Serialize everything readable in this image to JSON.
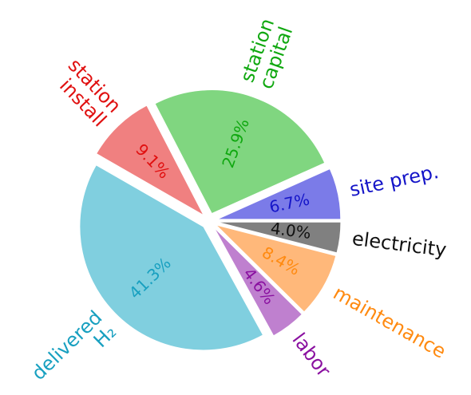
{
  "chart_data": {
    "type": "pie",
    "categories": [
      "site prep.",
      "station\ncapital",
      "station\ninstall",
      "delivered\nH₂",
      "labor",
      "maintenance",
      "electricity"
    ],
    "values": [
      6.7,
      25.9,
      9.1,
      41.3,
      4.6,
      8.4,
      4.0
    ],
    "value_labels": [
      "6.7%",
      "25.9%",
      "9.1%",
      "41.3%",
      "4.6%",
      "8.4%",
      "4.0%"
    ],
    "colors": [
      "#7b7be8",
      "#80d680",
      "#f08080",
      "#80cfdf",
      "#bf80cf",
      "#ffb87a",
      "#808080"
    ],
    "label_colors": [
      "#1414c8",
      "#10a810",
      "#e01010",
      "#18a0c0",
      "#8a10a0",
      "#ff8a10",
      "#111111"
    ]
  }
}
